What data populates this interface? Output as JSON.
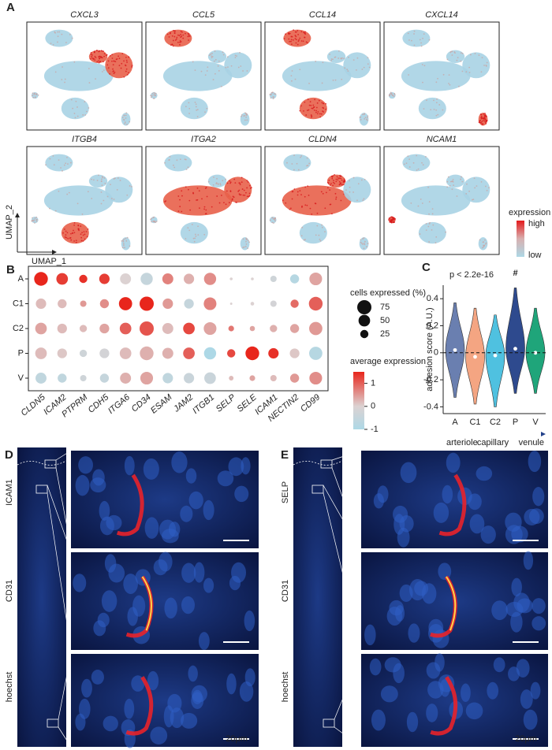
{
  "panel_labels": [
    "A",
    "B",
    "C",
    "D",
    "E"
  ],
  "umap": {
    "genes": [
      "CXCL3",
      "CCL5",
      "CCL14",
      "CXCL14",
      "ITGB4",
      "ITGA2",
      "CLDN4",
      "NCAM1"
    ],
    "x_label": "UMAP_1",
    "y_label": "UMAP_2",
    "legend_title": "expression",
    "legend_high": "high",
    "legend_low": "low"
  },
  "chart_data": [
    {
      "type": "dot",
      "rows": [
        "A",
        "C1",
        "C2",
        "P",
        "V"
      ],
      "genes": [
        "CLDN5",
        "ICAM2",
        "PTPRM",
        "CDH5",
        "ITGA6",
        "CD34",
        "ESAM",
        "JAM2",
        "ITGB1",
        "SELP",
        "SELE",
        "ICAM1",
        "NECTIN2",
        "CD99"
      ],
      "size": [
        [
          70,
          50,
          25,
          40,
          45,
          55,
          45,
          40,
          55,
          3,
          3,
          15,
          30,
          60
        ],
        [
          40,
          30,
          15,
          30,
          65,
          75,
          40,
          35,
          60,
          2,
          5,
          15,
          25,
          70
        ],
        [
          50,
          35,
          20,
          35,
          50,
          75,
          45,
          50,
          60,
          12,
          10,
          20,
          30,
          65
        ],
        [
          50,
          35,
          20,
          35,
          50,
          70,
          45,
          50,
          55,
          25,
          70,
          40,
          35,
          65
        ],
        [
          45,
          30,
          15,
          30,
          45,
          60,
          40,
          40,
          50,
          8,
          12,
          15,
          30,
          60
        ]
      ],
      "expression": [
        [
          1.5,
          1.3,
          1.4,
          1.3,
          0,
          -0.5,
          0.7,
          0.3,
          0.6,
          0,
          0,
          -0.3,
          -0.8,
          0.4
        ],
        [
          0.2,
          0.2,
          0.5,
          0.6,
          1.5,
          1.5,
          0.5,
          -0.5,
          0.7,
          0,
          0,
          -0.2,
          0.9,
          1.0
        ],
        [
          0.4,
          0.2,
          0.2,
          0.4,
          1.0,
          1.1,
          0.2,
          1.2,
          0.4,
          0.8,
          0.4,
          0.3,
          0.4,
          0.5
        ],
        [
          0.2,
          0.1,
          -0.3,
          -0.2,
          0.2,
          0.3,
          0.3,
          1.0,
          -1.0,
          1.2,
          1.5,
          1.4,
          0.1,
          -0.8
        ],
        [
          -0.6,
          -0.6,
          -0.3,
          -0.5,
          0.3,
          0.4,
          -0.6,
          -0.4,
          -0.4,
          0.2,
          0.4,
          0.2,
          0.5,
          0.6
        ]
      ],
      "size_legend_title": "cells expressed (%)",
      "size_ticks": [
        75,
        50,
        25
      ],
      "color_legend_title": "average expression",
      "color_lim": [
        -1,
        1.5
      ],
      "color_ticks": [
        1,
        0,
        -1
      ],
      "color_low": "#add8e6",
      "color_mid": "#dcd2d2",
      "color_high": "#e8261c"
    },
    {
      "type": "violin",
      "categories": [
        "A",
        "C1",
        "C2",
        "P",
        "V"
      ],
      "colors": [
        "#6a7fb0",
        "#f4a582",
        "#4fc1e0",
        "#2e4a8e",
        "#1fa57a"
      ],
      "median": [
        0.02,
        -0.03,
        -0.02,
        0.03,
        0.0
      ],
      "min": [
        -0.33,
        -0.38,
        -0.4,
        -0.3,
        -0.3
      ],
      "max": [
        0.37,
        0.33,
        0.28,
        0.48,
        0.33
      ],
      "ylim": [
        -0.45,
        0.5
      ],
      "yticks": [
        -0.4,
        -0.2,
        0,
        0.2,
        0.4
      ],
      "reference_line": 0,
      "y_label": "adhesion score (A.U.)",
      "annotation": "p < 2.2e-16",
      "marker": "#",
      "marker_index": 3,
      "gradient_labels": [
        "arteriole",
        "capillary",
        "venule"
      ]
    }
  ],
  "panel_d": {
    "stains": [
      "ICAM1",
      "CD31",
      "hoechst"
    ],
    "scale_bar": "20μm"
  },
  "panel_e": {
    "stains": [
      "SELP",
      "CD31",
      "hoechst"
    ],
    "scale_bar": "20μm"
  }
}
